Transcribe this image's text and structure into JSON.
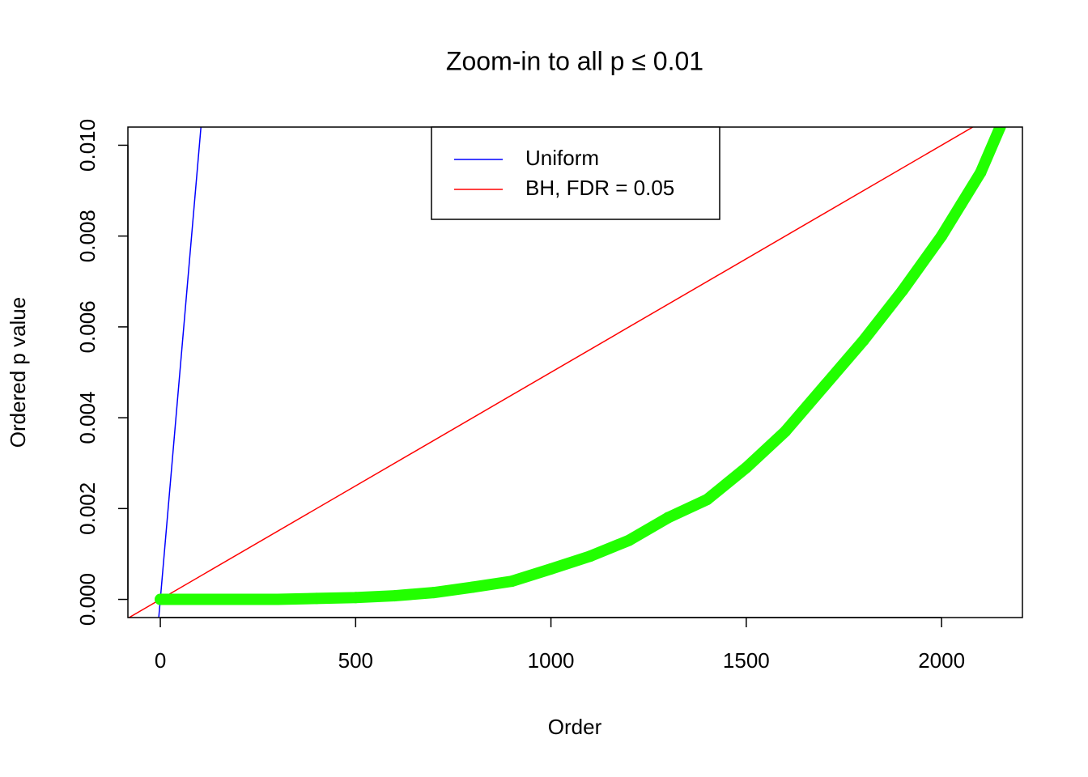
{
  "chart_data": {
    "type": "line",
    "title": "Zoom-in to all p ≤ 0.01",
    "x_label": "Order",
    "y_label": "Ordered p value",
    "xlim": [
      -83,
      2207
    ],
    "ylim": [
      -0.0004,
      0.0104
    ],
    "xticks": [
      0,
      500,
      1000,
      1500,
      2000
    ],
    "yticks": [
      {
        "value": 0,
        "label": "0.000"
      },
      {
        "value": 0.002,
        "label": "0.002"
      },
      {
        "value": 0.004,
        "label": "0.004"
      },
      {
        "value": 0.006,
        "label": "0.006"
      },
      {
        "value": 0.008,
        "label": "0.008"
      },
      {
        "value": 0.01,
        "label": "0.010"
      }
    ],
    "legend": "top",
    "series": [
      {
        "name": "Uniform",
        "color": "#0000ff",
        "x": [
          -4,
          104
        ],
        "values": [
          -0.0004,
          0.0104
        ]
      },
      {
        "name": "BH, FDR = 0.05",
        "color": "#ff0000",
        "x": [
          -80,
          2080
        ],
        "values": [
          -0.0004,
          0.0104
        ]
      },
      {
        "color": "#22ff00",
        "points": true,
        "x": [
          0,
          100,
          200,
          300,
          400,
          500,
          600,
          700,
          800,
          900,
          1000,
          1100,
          1200,
          1300,
          1400,
          1500,
          1600,
          1700,
          1800,
          1900,
          2000,
          2050,
          2100,
          2150
        ],
        "values": [
          0,
          0,
          0,
          0,
          2e-05,
          4e-05,
          8e-05,
          0.00015,
          0.00027,
          0.0004,
          0.00067,
          0.00095,
          0.0013,
          0.0018,
          0.0022,
          0.0029,
          0.0037,
          0.0047,
          0.0057,
          0.0068,
          0.008,
          0.0087,
          0.0094,
          0.0104
        ]
      }
    ]
  }
}
